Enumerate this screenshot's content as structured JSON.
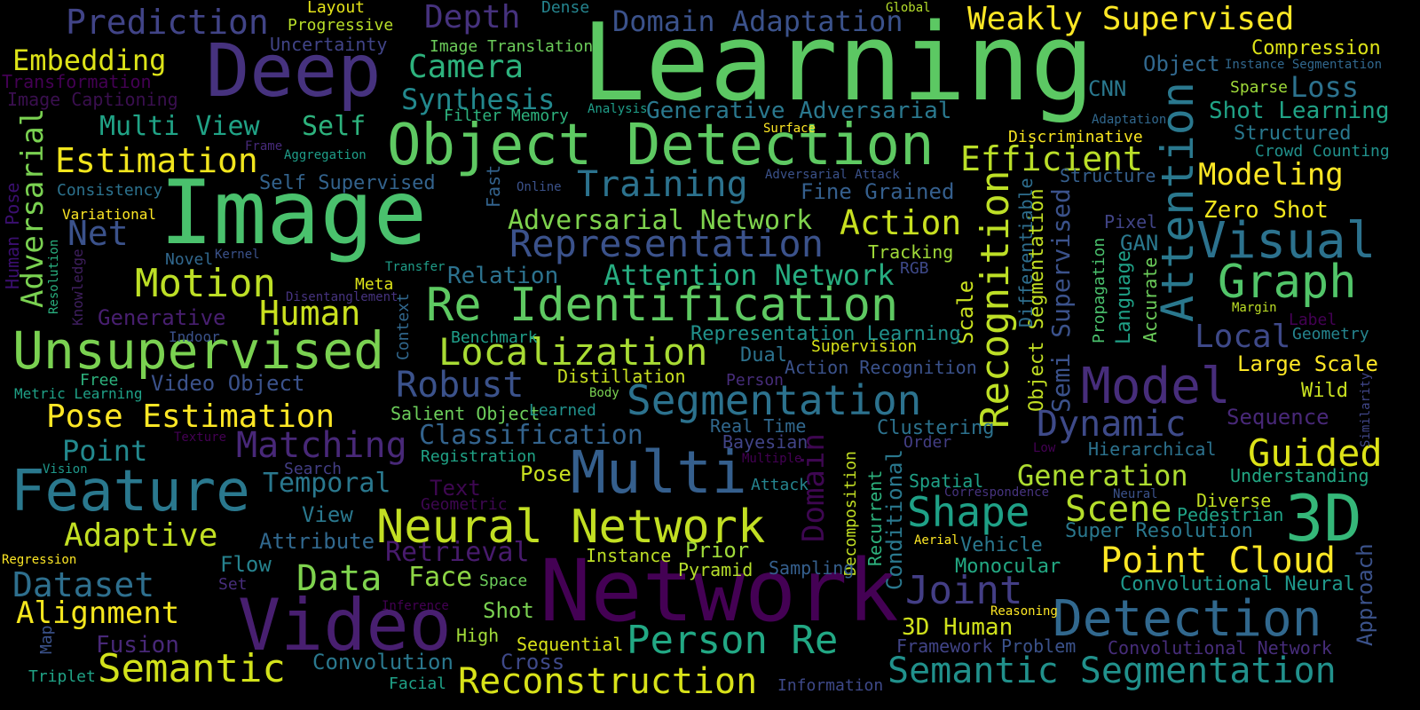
{
  "background": "#000000",
  "words": [
    {
      "text": "Learning",
      "color": "#5cc863"
    },
    {
      "text": "Image",
      "color": "#4ac16d"
    },
    {
      "text": "Network",
      "color": "#440154"
    },
    {
      "text": "Object Detection",
      "color": "#5ec962"
    },
    {
      "text": "Deep",
      "color": "#46327e"
    },
    {
      "text": "Video",
      "color": "#481f70"
    },
    {
      "text": "Unsupervised",
      "color": "#7ad151"
    },
    {
      "text": "Feature",
      "color": "#2a788e"
    },
    {
      "text": "Multi",
      "color": "#355f8d"
    },
    {
      "text": "Re Identification",
      "color": "#5ec962"
    },
    {
      "text": "Detection",
      "color": "#31688e"
    },
    {
      "text": "Attention",
      "color": "#2a788e"
    },
    {
      "text": "Recognition",
      "color": "#bddf26"
    },
    {
      "text": "Segmentation",
      "color": "#2c728e"
    },
    {
      "text": "Neural Network",
      "color": "#c2df23"
    },
    {
      "text": "Semantic Segmentation",
      "color": "#21918c"
    },
    {
      "text": "Weakly Supervised",
      "color": "#fde725"
    },
    {
      "text": "3D",
      "color": "#35b779"
    },
    {
      "text": "Visual",
      "color": "#2c728e"
    },
    {
      "text": "Graph",
      "color": "#52c569"
    },
    {
      "text": "Model",
      "color": "#472d7b"
    },
    {
      "text": "Representation",
      "color": "#3b528b"
    },
    {
      "text": "Semantic",
      "color": "#d2e21b"
    },
    {
      "text": "Reconstruction",
      "color": "#d8e219"
    },
    {
      "text": "Person Re",
      "color": "#22a884"
    },
    {
      "text": "Point Cloud",
      "color": "#fde725"
    },
    {
      "text": "Localization",
      "color": "#a8db34"
    },
    {
      "text": "Prediction",
      "color": "#414487"
    },
    {
      "text": "Estimation",
      "color": "#f1e51d"
    },
    {
      "text": "Motion",
      "color": "#bddf26"
    },
    {
      "text": "Shape",
      "color": "#1fa187"
    },
    {
      "text": "Scene",
      "color": "#b5de2b"
    },
    {
      "text": "Joint",
      "color": "#433e85"
    },
    {
      "text": "Domain Adaptation",
      "color": "#3b528b"
    },
    {
      "text": "Pose Estimation",
      "color": "#fde725"
    },
    {
      "text": "Matching",
      "color": "#482878"
    },
    {
      "text": "Dynamic",
      "color": "#3e4a89"
    },
    {
      "text": "Guided",
      "color": "#dde318"
    },
    {
      "text": "Robust",
      "color": "#3b528b"
    },
    {
      "text": "Action",
      "color": "#c8e020"
    },
    {
      "text": "Training",
      "color": "#2c728e"
    },
    {
      "text": "Efficient",
      "color": "#bade28"
    },
    {
      "text": "Camera",
      "color": "#2db27d"
    },
    {
      "text": "Adversarial",
      "color": "#7ad151"
    },
    {
      "text": "Embedding",
      "color": "#dde318"
    },
    {
      "text": "Depth",
      "color": "#46327e"
    },
    {
      "text": "Dataset",
      "color": "#2e6f8e"
    },
    {
      "text": "Data",
      "color": "#7fd34e"
    },
    {
      "text": "Human",
      "color": "#cae11f"
    },
    {
      "text": "Alignment",
      "color": "#f4e61e"
    },
    {
      "text": "Adaptive",
      "color": "#c2df23"
    },
    {
      "text": "Modeling",
      "color": "#fde725"
    },
    {
      "text": "Domain",
      "color": "#3e0751"
    },
    {
      "text": "Generation",
      "color": "#addc30"
    },
    {
      "text": "Temporal",
      "color": "#2a788e"
    },
    {
      "text": "Classification",
      "color": "#33638d"
    },
    {
      "text": "Attention Network",
      "color": "#27ad81"
    },
    {
      "text": "Adversarial Network",
      "color": "#7fd34e"
    },
    {
      "text": "Synthesis",
      "color": "#23898e"
    },
    {
      "text": "Generative Adversarial",
      "color": "#2a788e"
    },
    {
      "text": "Self",
      "color": "#2db27d"
    },
    {
      "text": "Multi View",
      "color": "#20a386"
    },
    {
      "text": "Net",
      "color": "#3b528b"
    },
    {
      "text": "Point",
      "color": "#23898e"
    },
    {
      "text": "Face",
      "color": "#8ed645"
    },
    {
      "text": "Local",
      "color": "#3e4989"
    },
    {
      "text": "Loss",
      "color": "#2c728e"
    },
    {
      "text": "Zero Shot",
      "color": "#f1e51d"
    },
    {
      "text": "Shot Learning",
      "color": "#20a386"
    },
    {
      "text": "Large Scale",
      "color": "#fde725"
    },
    {
      "text": "Semi Supervised",
      "color": "#3b528b"
    },
    {
      "text": "Object Segmentation",
      "color": "#c2df23"
    },
    {
      "text": "Differentiable",
      "color": "#2e6e8e"
    },
    {
      "text": "Scale",
      "color": "#cae11f"
    },
    {
      "text": "Language",
      "color": "#1fa187"
    },
    {
      "text": "Accurate",
      "color": "#6ccd5a"
    },
    {
      "text": "Retrieval",
      "color": "#481b6d"
    },
    {
      "text": "Convolution",
      "color": "#2a788e"
    },
    {
      "text": "Compression",
      "color": "#dde318"
    },
    {
      "text": "Fine Grained",
      "color": "#355f8d"
    },
    {
      "text": "Structured",
      "color": "#29788e"
    },
    {
      "text": "Approach",
      "color": "#3b528b"
    },
    {
      "text": "3D Human",
      "color": "#d0e11c"
    },
    {
      "text": "Convolutional Neural",
      "color": "#1f988b"
    },
    {
      "text": "Super Resolution",
      "color": "#2a788e"
    },
    {
      "text": "Object",
      "color": "#31688e"
    },
    {
      "text": "Sequence",
      "color": "#482878"
    },
    {
      "text": "Conditional",
      "color": "#2a788e"
    },
    {
      "text": "Video Object",
      "color": "#3b528b"
    },
    {
      "text": "Relation",
      "color": "#2c728e"
    },
    {
      "text": "Generative",
      "color": "#481f70"
    },
    {
      "text": "Pose",
      "color": "#c8e020"
    },
    {
      "text": "Fusion",
      "color": "#482878"
    },
    {
      "text": "Self Supervised",
      "color": "#33638d"
    },
    {
      "text": "Uncertainty",
      "color": "#414487"
    },
    {
      "text": "Layout",
      "color": "#e5e419"
    },
    {
      "text": "Progressive",
      "color": "#b8de29"
    },
    {
      "text": "Dense",
      "color": "#25848e"
    },
    {
      "text": "Image Translation",
      "color": "#6ccd5a"
    },
    {
      "text": "Global",
      "color": "#b5de2b"
    },
    {
      "text": "Transformation",
      "color": "#440154"
    },
    {
      "text": "Image Captioning",
      "color": "#3a0f4f"
    },
    {
      "text": "Filter Memory",
      "color": "#2db27d"
    },
    {
      "text": "Analysis",
      "color": "#1f9e89"
    },
    {
      "text": "Surface",
      "color": "#fde725"
    },
    {
      "text": "Frame",
      "color": "#472a7a"
    },
    {
      "text": "Aggregation",
      "color": "#1f9e89"
    },
    {
      "text": "Consistency",
      "color": "#2c728e"
    },
    {
      "text": "Variational",
      "color": "#fde725"
    },
    {
      "text": "Human Pose",
      "color": "#3b0f70"
    },
    {
      "text": "Resolution",
      "color": "#29af7f"
    },
    {
      "text": "Knowledge",
      "color": "#3f1f5f"
    },
    {
      "text": "Fast",
      "color": "#33638d"
    },
    {
      "text": "Online",
      "color": "#3b528b"
    },
    {
      "text": "Adversarial Attack",
      "color": "#3b528b"
    },
    {
      "text": "Discriminative",
      "color": "#f8e621"
    },
    {
      "text": "Structure",
      "color": "#355f8d"
    },
    {
      "text": "Sparse",
      "color": "#9fda3a"
    },
    {
      "text": "Instance Segmentation",
      "color": "#31688e"
    },
    {
      "text": "Adaptation",
      "color": "#31688e"
    },
    {
      "text": "Crowd Counting",
      "color": "#21918c"
    },
    {
      "text": "CNN",
      "color": "#2a788e"
    },
    {
      "text": "Pixel",
      "color": "#414487"
    },
    {
      "text": "GAN",
      "color": "#2a788e"
    },
    {
      "text": "Propagation",
      "color": "#4ac16d"
    },
    {
      "text": "Margin",
      "color": "#bddf26"
    },
    {
      "text": "Label",
      "color": "#440154"
    },
    {
      "text": "Geometry",
      "color": "#25848e"
    },
    {
      "text": "Wild",
      "color": "#c8e020"
    },
    {
      "text": "Similarity",
      "color": "#404688"
    },
    {
      "text": "Hierarchical",
      "color": "#2c728e"
    },
    {
      "text": "Understanding",
      "color": "#22a884"
    },
    {
      "text": "Diverse",
      "color": "#c2df23"
    },
    {
      "text": "Pedestrian",
      "color": "#20a386"
    },
    {
      "text": "Neural",
      "color": "#3b528b"
    },
    {
      "text": "Correspondence",
      "color": "#46337f"
    },
    {
      "text": "Spatial",
      "color": "#1fa187"
    },
    {
      "text": "Aerial",
      "color": "#fde725"
    },
    {
      "text": "Vehicle",
      "color": "#2a788e"
    },
    {
      "text": "Monocular",
      "color": "#23a983"
    },
    {
      "text": "Reasoning",
      "color": "#fde725"
    },
    {
      "text": "Framework",
      "color": "#414487"
    },
    {
      "text": "Problem",
      "color": "#3b528b"
    },
    {
      "text": "Convolutional Network",
      "color": "#472d7b"
    },
    {
      "text": "Tracking",
      "color": "#a0da39"
    },
    {
      "text": "RGB",
      "color": "#3e4989"
    },
    {
      "text": "Representation Learning",
      "color": "#21918c"
    },
    {
      "text": "Supervision",
      "color": "#d8e219"
    },
    {
      "text": "Action Recognition",
      "color": "#3b528b"
    },
    {
      "text": "Dual",
      "color": "#2c728e"
    },
    {
      "text": "Person",
      "color": "#472d7b"
    },
    {
      "text": "Distillation",
      "color": "#c8e020"
    },
    {
      "text": "Benchmark",
      "color": "#1f9e89"
    },
    {
      "text": "Body",
      "color": "#7ad151"
    },
    {
      "text": "Salient Object",
      "color": "#6ccd5a"
    },
    {
      "text": "Learned",
      "color": "#21918c"
    },
    {
      "text": "Real Time",
      "color": "#31688e"
    },
    {
      "text": "Bayesian",
      "color": "#414487"
    },
    {
      "text": "Clustering",
      "color": "#2c728e"
    },
    {
      "text": "Order",
      "color": "#433e85"
    },
    {
      "text": "Low",
      "color": "#440154"
    },
    {
      "text": "Registration",
      "color": "#20a386"
    },
    {
      "text": "Multiple",
      "color": "#440154"
    },
    {
      "text": "Attack",
      "color": "#25848e"
    },
    {
      "text": "Decomposition",
      "color": "#c2df23"
    },
    {
      "text": "Recurrent",
      "color": "#2db27d"
    },
    {
      "text": "Text",
      "color": "#3e0751"
    },
    {
      "text": "Geometric",
      "color": "#3e0751"
    },
    {
      "text": "View",
      "color": "#2a788e"
    },
    {
      "text": "Attribute",
      "color": "#31688e"
    },
    {
      "text": "Search",
      "color": "#433e85"
    },
    {
      "text": "Flow",
      "color": "#26828e"
    },
    {
      "text": "Set",
      "color": "#472d7b"
    },
    {
      "text": "Instance",
      "color": "#bddf26"
    },
    {
      "text": "Prior",
      "color": "#9fda3a"
    },
    {
      "text": "Pyramid",
      "color": "#b5de2b"
    },
    {
      "text": "Sampling",
      "color": "#355f8d"
    },
    {
      "text": "Space",
      "color": "#6ccd5a"
    },
    {
      "text": "Shot",
      "color": "#7ad151"
    },
    {
      "text": "High",
      "color": "#a0da39"
    },
    {
      "text": "Inference",
      "color": "#440154"
    },
    {
      "text": "Sequential",
      "color": "#d8e219"
    },
    {
      "text": "Cross",
      "color": "#3e4989"
    },
    {
      "text": "Facial",
      "color": "#1fa187"
    },
    {
      "text": "Information",
      "color": "#3e4989"
    },
    {
      "text": "Indoor",
      "color": "#3b528b"
    },
    {
      "text": "Free",
      "color": "#2db27d"
    },
    {
      "text": "Metric Learning",
      "color": "#1fa187"
    },
    {
      "text": "Novel",
      "color": "#31688e"
    },
    {
      "text": "Kernel",
      "color": "#3b528b"
    },
    {
      "text": "Transfer",
      "color": "#1f9e89"
    },
    {
      "text": "Meta",
      "color": "#dde318"
    },
    {
      "text": "Disentanglement",
      "color": "#46337f"
    },
    {
      "text": "Context",
      "color": "#31688e"
    },
    {
      "text": "Texture",
      "color": "#440154"
    },
    {
      "text": "Vision",
      "color": "#1f988b"
    },
    {
      "text": "Regression",
      "color": "#fde725"
    },
    {
      "text": "Map",
      "color": "#3b528b"
    },
    {
      "text": "Triplet",
      "color": "#20a386"
    }
  ]
}
